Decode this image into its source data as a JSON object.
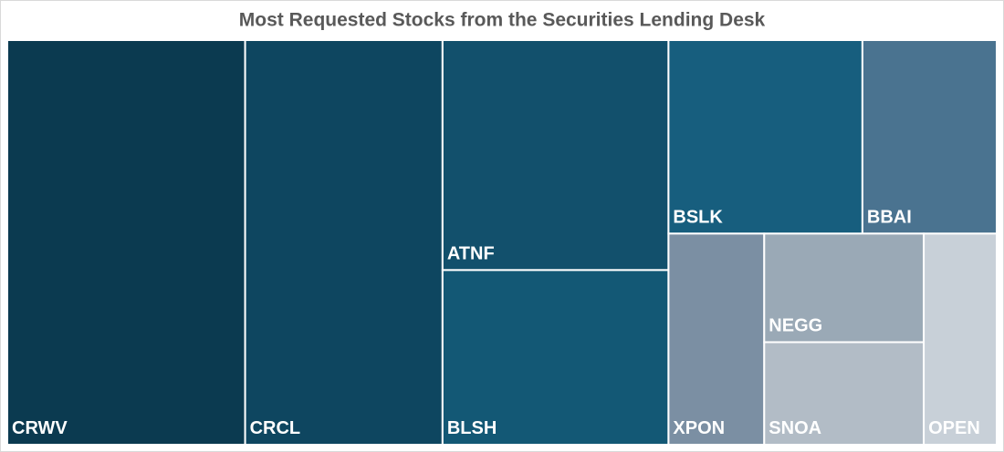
{
  "chart_data": {
    "type": "treemap",
    "title": "Most Requested Stocks from the Securities Lending Desk",
    "categories": [
      "CRWV",
      "CRCL",
      "ATNF",
      "BLSH",
      "BSLK",
      "BBAI",
      "XPON",
      "NEGG",
      "SNOA",
      "OPEN"
    ],
    "values": [
      100,
      83,
      54,
      41,
      39,
      27,
      21,
      18,
      17,
      16
    ],
    "colors": [
      "#0b3a50",
      "#0e4660",
      "#12506c",
      "#135875",
      "#175e7e",
      "#4a7390",
      "#7b8fa3",
      "#9aa9b6",
      "#b2bcc6",
      "#c8d0d8"
    ]
  }
}
